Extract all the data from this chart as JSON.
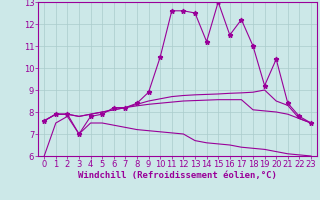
{
  "background_color": "#cce8e8",
  "line_color": "#990099",
  "grid_color": "#aacccc",
  "xlabel": "Windchill (Refroidissement éolien,°C)",
  "xlabel_fontsize": 6.5,
  "tick_fontsize": 6,
  "xlim": [
    -0.5,
    23.5
  ],
  "ylim": [
    6,
    13
  ],
  "yticks": [
    6,
    7,
    8,
    9,
    10,
    11,
    12,
    13
  ],
  "xticks": [
    0,
    1,
    2,
    3,
    4,
    5,
    6,
    7,
    8,
    9,
    10,
    11,
    12,
    13,
    14,
    15,
    16,
    17,
    18,
    19,
    20,
    21,
    22,
    23
  ],
  "series": [
    [
      7.6,
      7.9,
      7.9,
      7.0,
      7.8,
      7.9,
      8.2,
      8.2,
      8.4,
      8.9,
      10.5,
      12.6,
      12.6,
      12.5,
      11.2,
      13.0,
      11.5,
      12.2,
      11.0,
      9.2,
      10.4,
      8.4,
      7.8,
      7.5
    ],
    [
      7.6,
      7.9,
      7.9,
      7.8,
      7.9,
      8.0,
      8.1,
      8.2,
      8.35,
      8.5,
      8.6,
      8.7,
      8.75,
      8.78,
      8.8,
      8.82,
      8.85,
      8.87,
      8.9,
      9.0,
      8.5,
      8.3,
      7.7,
      7.5
    ],
    [
      7.6,
      7.9,
      7.9,
      7.8,
      7.9,
      8.0,
      8.1,
      8.2,
      8.28,
      8.35,
      8.4,
      8.45,
      8.5,
      8.52,
      8.54,
      8.56,
      8.56,
      8.56,
      8.1,
      8.05,
      8.0,
      7.9,
      7.7,
      7.5
    ],
    [
      6.0,
      7.5,
      7.8,
      7.0,
      7.5,
      7.5,
      7.4,
      7.3,
      7.2,
      7.15,
      7.1,
      7.05,
      7.0,
      6.7,
      6.6,
      6.55,
      6.5,
      6.4,
      6.35,
      6.3,
      6.2,
      6.1,
      6.05,
      6.0
    ]
  ]
}
